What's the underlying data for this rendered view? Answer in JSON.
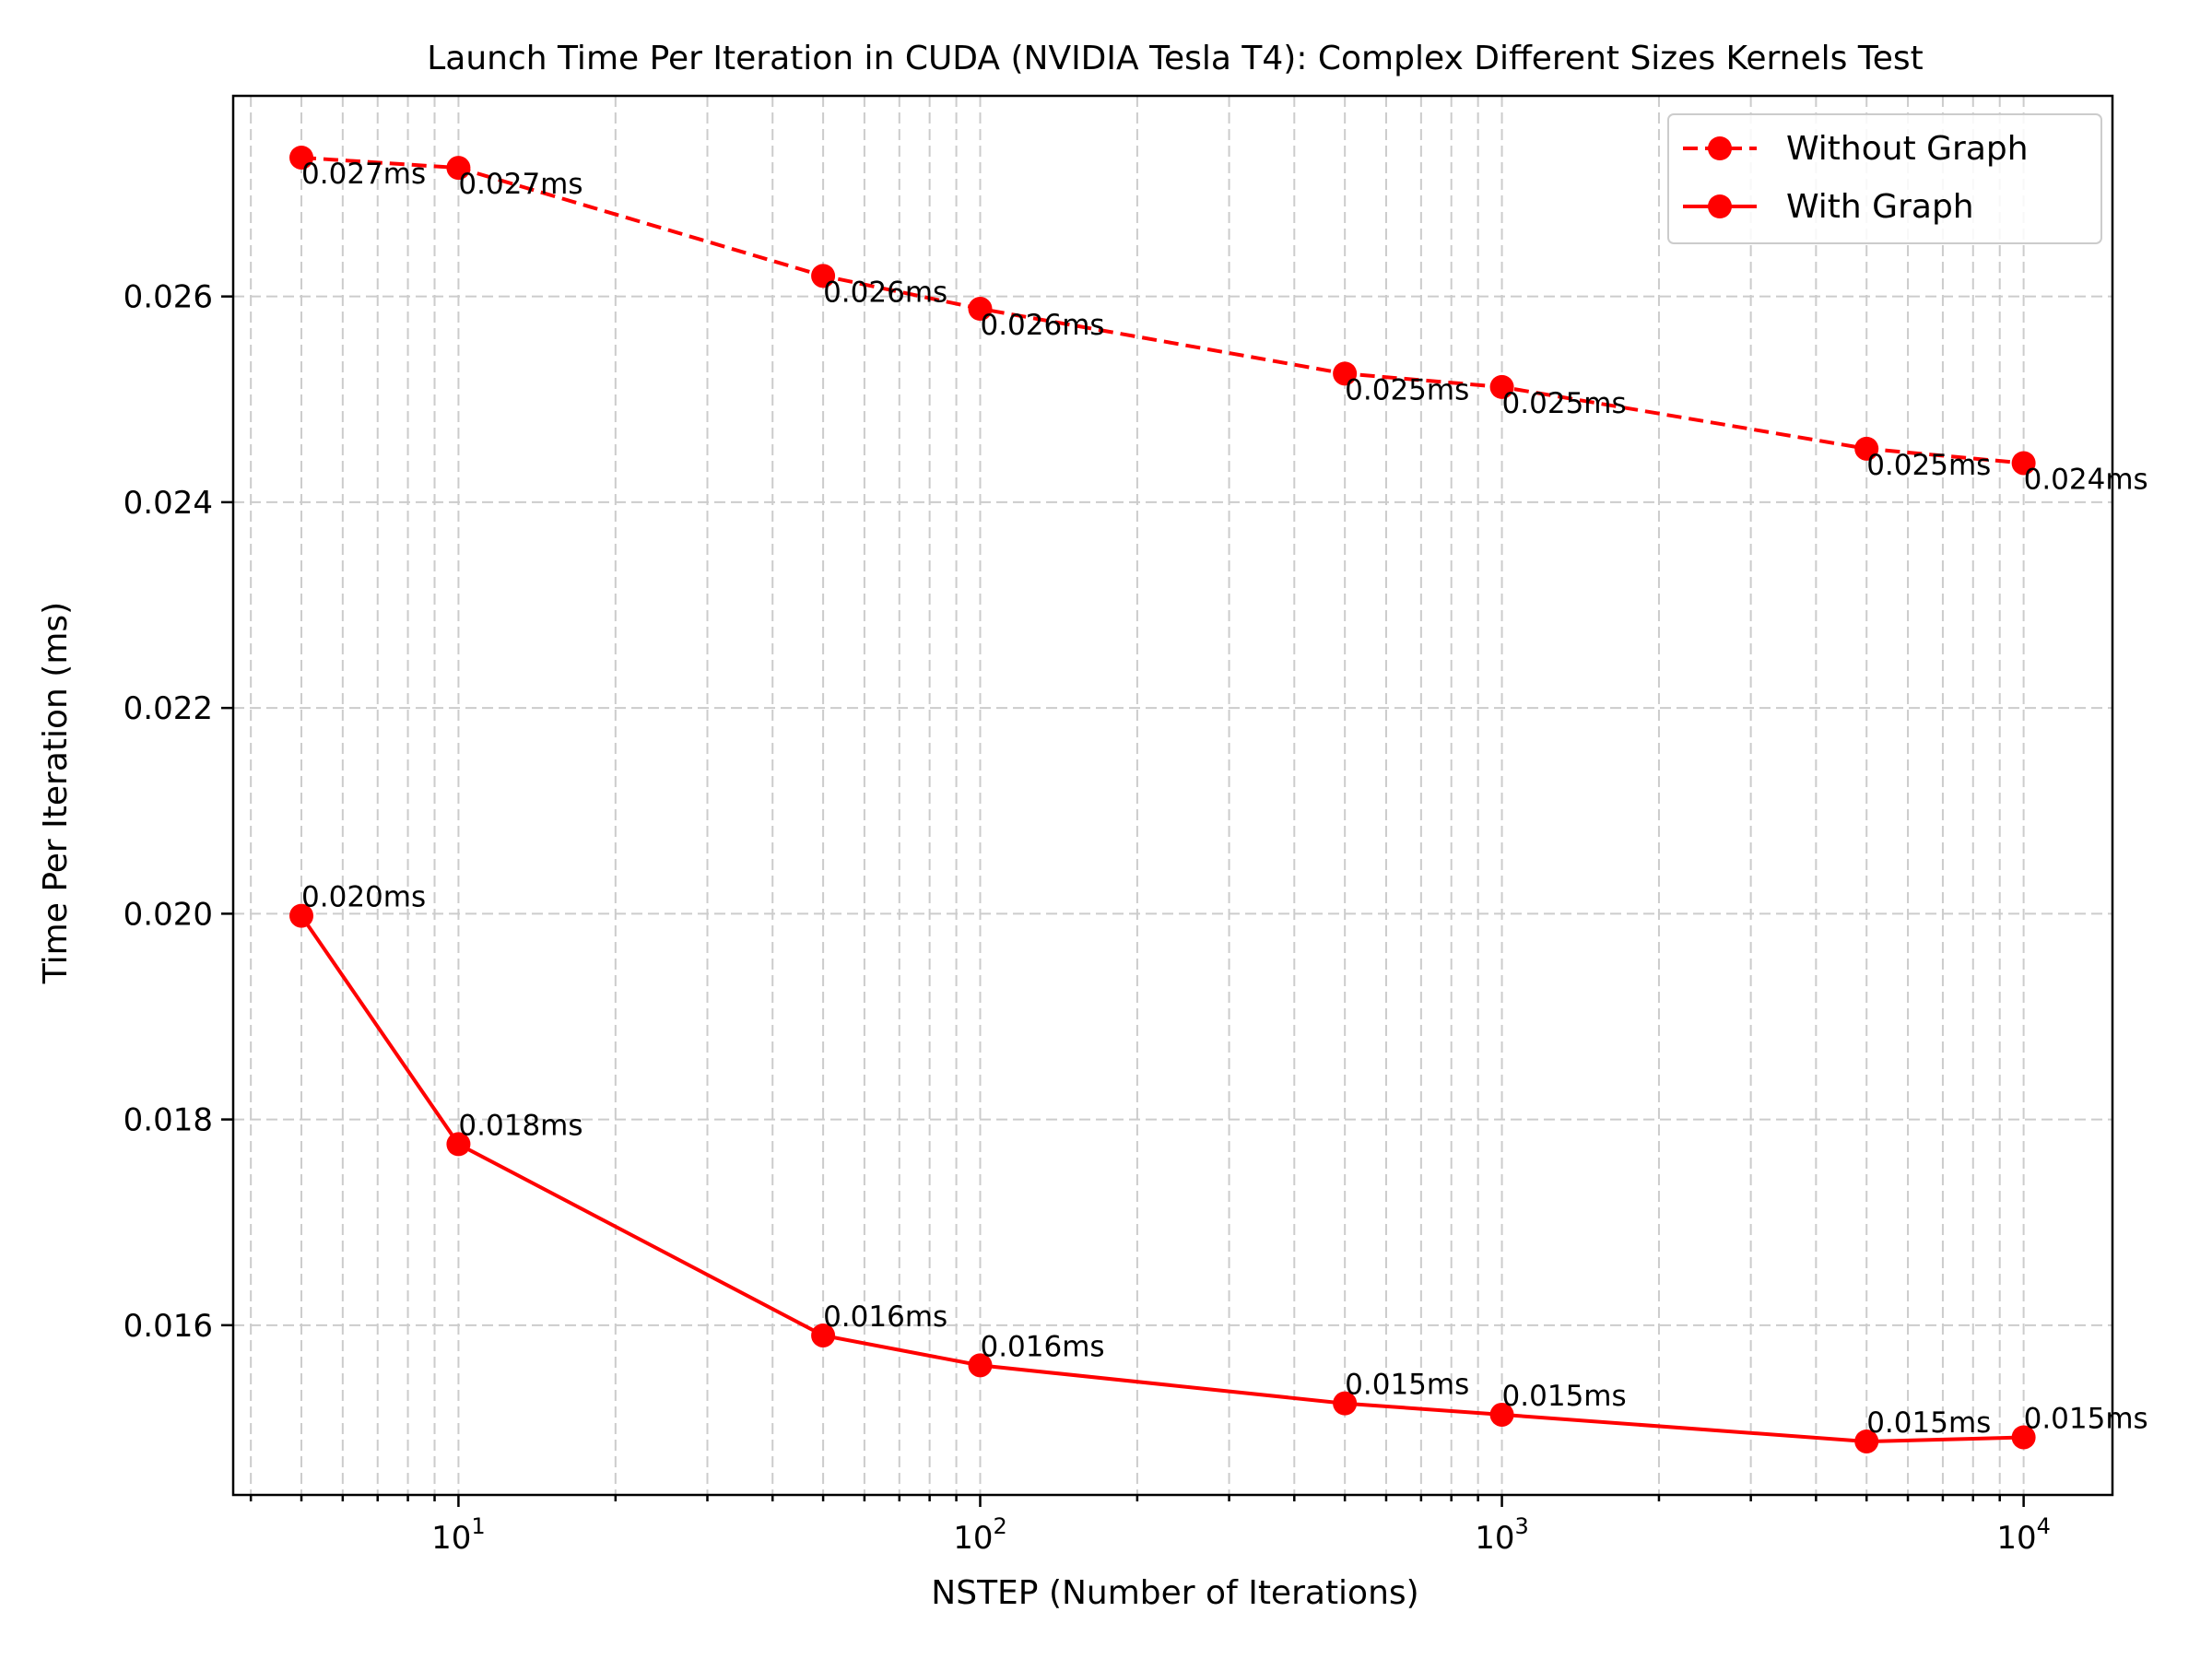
{
  "chart_data": {
    "type": "line",
    "title": "Launch Time Per Iteration in CUDA (NVIDIA Tesla T4): Complex Different Sizes Kernels Test",
    "xlabel": "NSTEP (Number of Iterations)",
    "ylabel": "Time Per Iteration (ms)",
    "x_scale": "log",
    "xlim": [
      3.7,
      14800
    ],
    "ylim": [
      0.01435,
      0.02795
    ],
    "grid": true,
    "legend_position": "top-right",
    "x": [
      5,
      10,
      50,
      100,
      500,
      1000,
      5000,
      10000
    ],
    "x_ticks": [
      {
        "value": 10,
        "base": "10",
        "exp": "1"
      },
      {
        "value": 100,
        "base": "10",
        "exp": "2"
      },
      {
        "value": 1000,
        "base": "10",
        "exp": "3"
      },
      {
        "value": 10000,
        "base": "10",
        "exp": "4"
      }
    ],
    "y_ticks": [
      {
        "value": 0.016,
        "label": "0.016"
      },
      {
        "value": 0.018,
        "label": "0.018"
      },
      {
        "value": 0.02,
        "label": "0.020"
      },
      {
        "value": 0.022,
        "label": "0.022"
      },
      {
        "value": 0.024,
        "label": "0.024"
      },
      {
        "value": 0.026,
        "label": "0.026"
      }
    ],
    "series": [
      {
        "name": "Without Graph",
        "color": "#ff0000",
        "line_style": "dashed",
        "values": [
          0.02735,
          0.02725,
          0.0262,
          0.02588,
          0.02525,
          0.02512,
          0.02452,
          0.02438
        ],
        "labels": [
          "0.027ms",
          "0.027ms",
          "0.026ms",
          "0.026ms",
          "0.025ms",
          "0.025ms",
          "0.025ms",
          "0.024ms"
        ]
      },
      {
        "name": "With Graph",
        "color": "#ff0000",
        "line_style": "solid",
        "values": [
          0.01998,
          0.01776,
          0.0159,
          0.01561,
          0.01524,
          0.01513,
          0.01487,
          0.01491
        ],
        "labels": [
          "0.020ms",
          "0.018ms",
          "0.016ms",
          "0.016ms",
          "0.015ms",
          "0.015ms",
          "0.015ms",
          "0.015ms"
        ]
      }
    ]
  }
}
